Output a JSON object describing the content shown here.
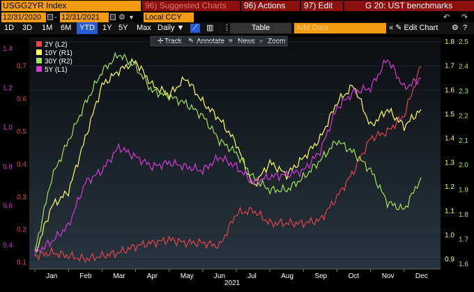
{
  "toolbar": {
    "ticker": "USGG2YR Index",
    "suggested_label": "96) Suggested Charts",
    "actions_label": "96) Actions",
    "edit_label": "97) Edit",
    "title_label": "G 20: UST benchmarks"
  },
  "range": {
    "start": "12/31/2020",
    "end": "12/31/2021",
    "currency": "Local CCY"
  },
  "periods": [
    "1D",
    "3D",
    "1M",
    "6M",
    "YTD",
    "1Y",
    "5Y",
    "Max"
  ],
  "frequency": "Daily ▼",
  "table_label": "Table",
  "add_data_placeholder": "Add Data",
  "edit_chart_label": "Edit Chart",
  "chart_tools": [
    "Track",
    "Annotate",
    "News",
    "Zoom"
  ],
  "colors": {
    "2Y": "#e8424a",
    "10Y": "#ffff60",
    "30Y": "#a2e35a",
    "5Y": "#d838d8",
    "accent": "#f39c12",
    "menu": "#8c1010"
  },
  "chart_data": {
    "type": "line",
    "title": "",
    "xlabel": "2021",
    "x_ticks": [
      "Jan",
      "Feb",
      "Mar",
      "Apr",
      "May",
      "Jun",
      "Jul",
      "Aug",
      "Sep",
      "Oct",
      "Nov",
      "Dec"
    ],
    "axes": {
      "L1": {
        "ticks": [
          "0.4",
          "0.6",
          "0.8",
          "1.0",
          "1.2",
          "1.4"
        ],
        "range": [
          0.28,
          1.46
        ]
      },
      "L2": {
        "ticks": [
          "0.1",
          "0.2",
          "0.3",
          "0.4",
          "0.5",
          "0.6",
          "0.7"
        ],
        "range": [
          0.08,
          0.79
        ]
      },
      "R1": {
        "ticks": [
          "0.9",
          "1.0",
          "1.1",
          "1.2",
          "1.3",
          "1.4",
          "1.5",
          "1.6",
          "1.7",
          "1.8"
        ],
        "range": [
          0.86,
          1.82
        ]
      },
      "R2": {
        "ticks": [
          "1.6",
          "1.7",
          "1.8",
          "1.9",
          "2.0",
          "2.1",
          "2.2",
          "2.3",
          "2.4",
          "2.5"
        ],
        "range": [
          1.58,
          2.52
        ]
      }
    },
    "legend": {
      "placement": "top-left",
      "entries": [
        "2Y (L2)",
        "10Y (R1)",
        "30Y (R2)",
        "5Y (L1)"
      ]
    },
    "x_months": [
      0,
      0.5,
      1,
      1.5,
      2,
      2.5,
      3,
      3.5,
      4,
      4.5,
      5,
      5.5,
      6,
      6.5,
      7,
      7.5,
      8,
      8.5,
      9,
      9.5,
      10,
      10.5,
      11,
      11.5
    ],
    "series": [
      {
        "name": "2Y (L2)",
        "axis": "L2",
        "values": [
          0.12,
          0.13,
          0.12,
          0.11,
          0.12,
          0.13,
          0.15,
          0.16,
          0.17,
          0.16,
          0.16,
          0.15,
          0.25,
          0.26,
          0.22,
          0.22,
          0.22,
          0.23,
          0.3,
          0.38,
          0.48,
          0.5,
          0.55,
          0.7
        ]
      },
      {
        "name": "10Y (R1)",
        "axis": "R1",
        "values": [
          0.92,
          1.12,
          1.18,
          1.4,
          1.62,
          1.68,
          1.72,
          1.62,
          1.58,
          1.65,
          1.55,
          1.48,
          1.38,
          1.2,
          1.3,
          1.25,
          1.32,
          1.4,
          1.55,
          1.62,
          1.45,
          1.52,
          1.45,
          1.52
        ]
      },
      {
        "name": "30Y (R2)",
        "axis": "R2",
        "values": [
          1.65,
          1.95,
          2.1,
          2.25,
          2.38,
          2.45,
          2.4,
          2.3,
          2.28,
          2.25,
          2.2,
          2.1,
          2.05,
          1.95,
          1.9,
          1.9,
          1.95,
          2.02,
          2.1,
          2.05,
          1.98,
          1.85,
          1.82,
          1.95
        ]
      },
      {
        "name": "5Y (L1)",
        "axis": "L1",
        "values": [
          0.36,
          0.42,
          0.5,
          0.72,
          0.78,
          0.9,
          0.85,
          0.8,
          0.82,
          0.8,
          0.78,
          0.85,
          0.8,
          0.72,
          0.75,
          0.76,
          0.78,
          0.88,
          1.1,
          1.18,
          1.2,
          1.35,
          1.2,
          1.25
        ]
      }
    ]
  }
}
